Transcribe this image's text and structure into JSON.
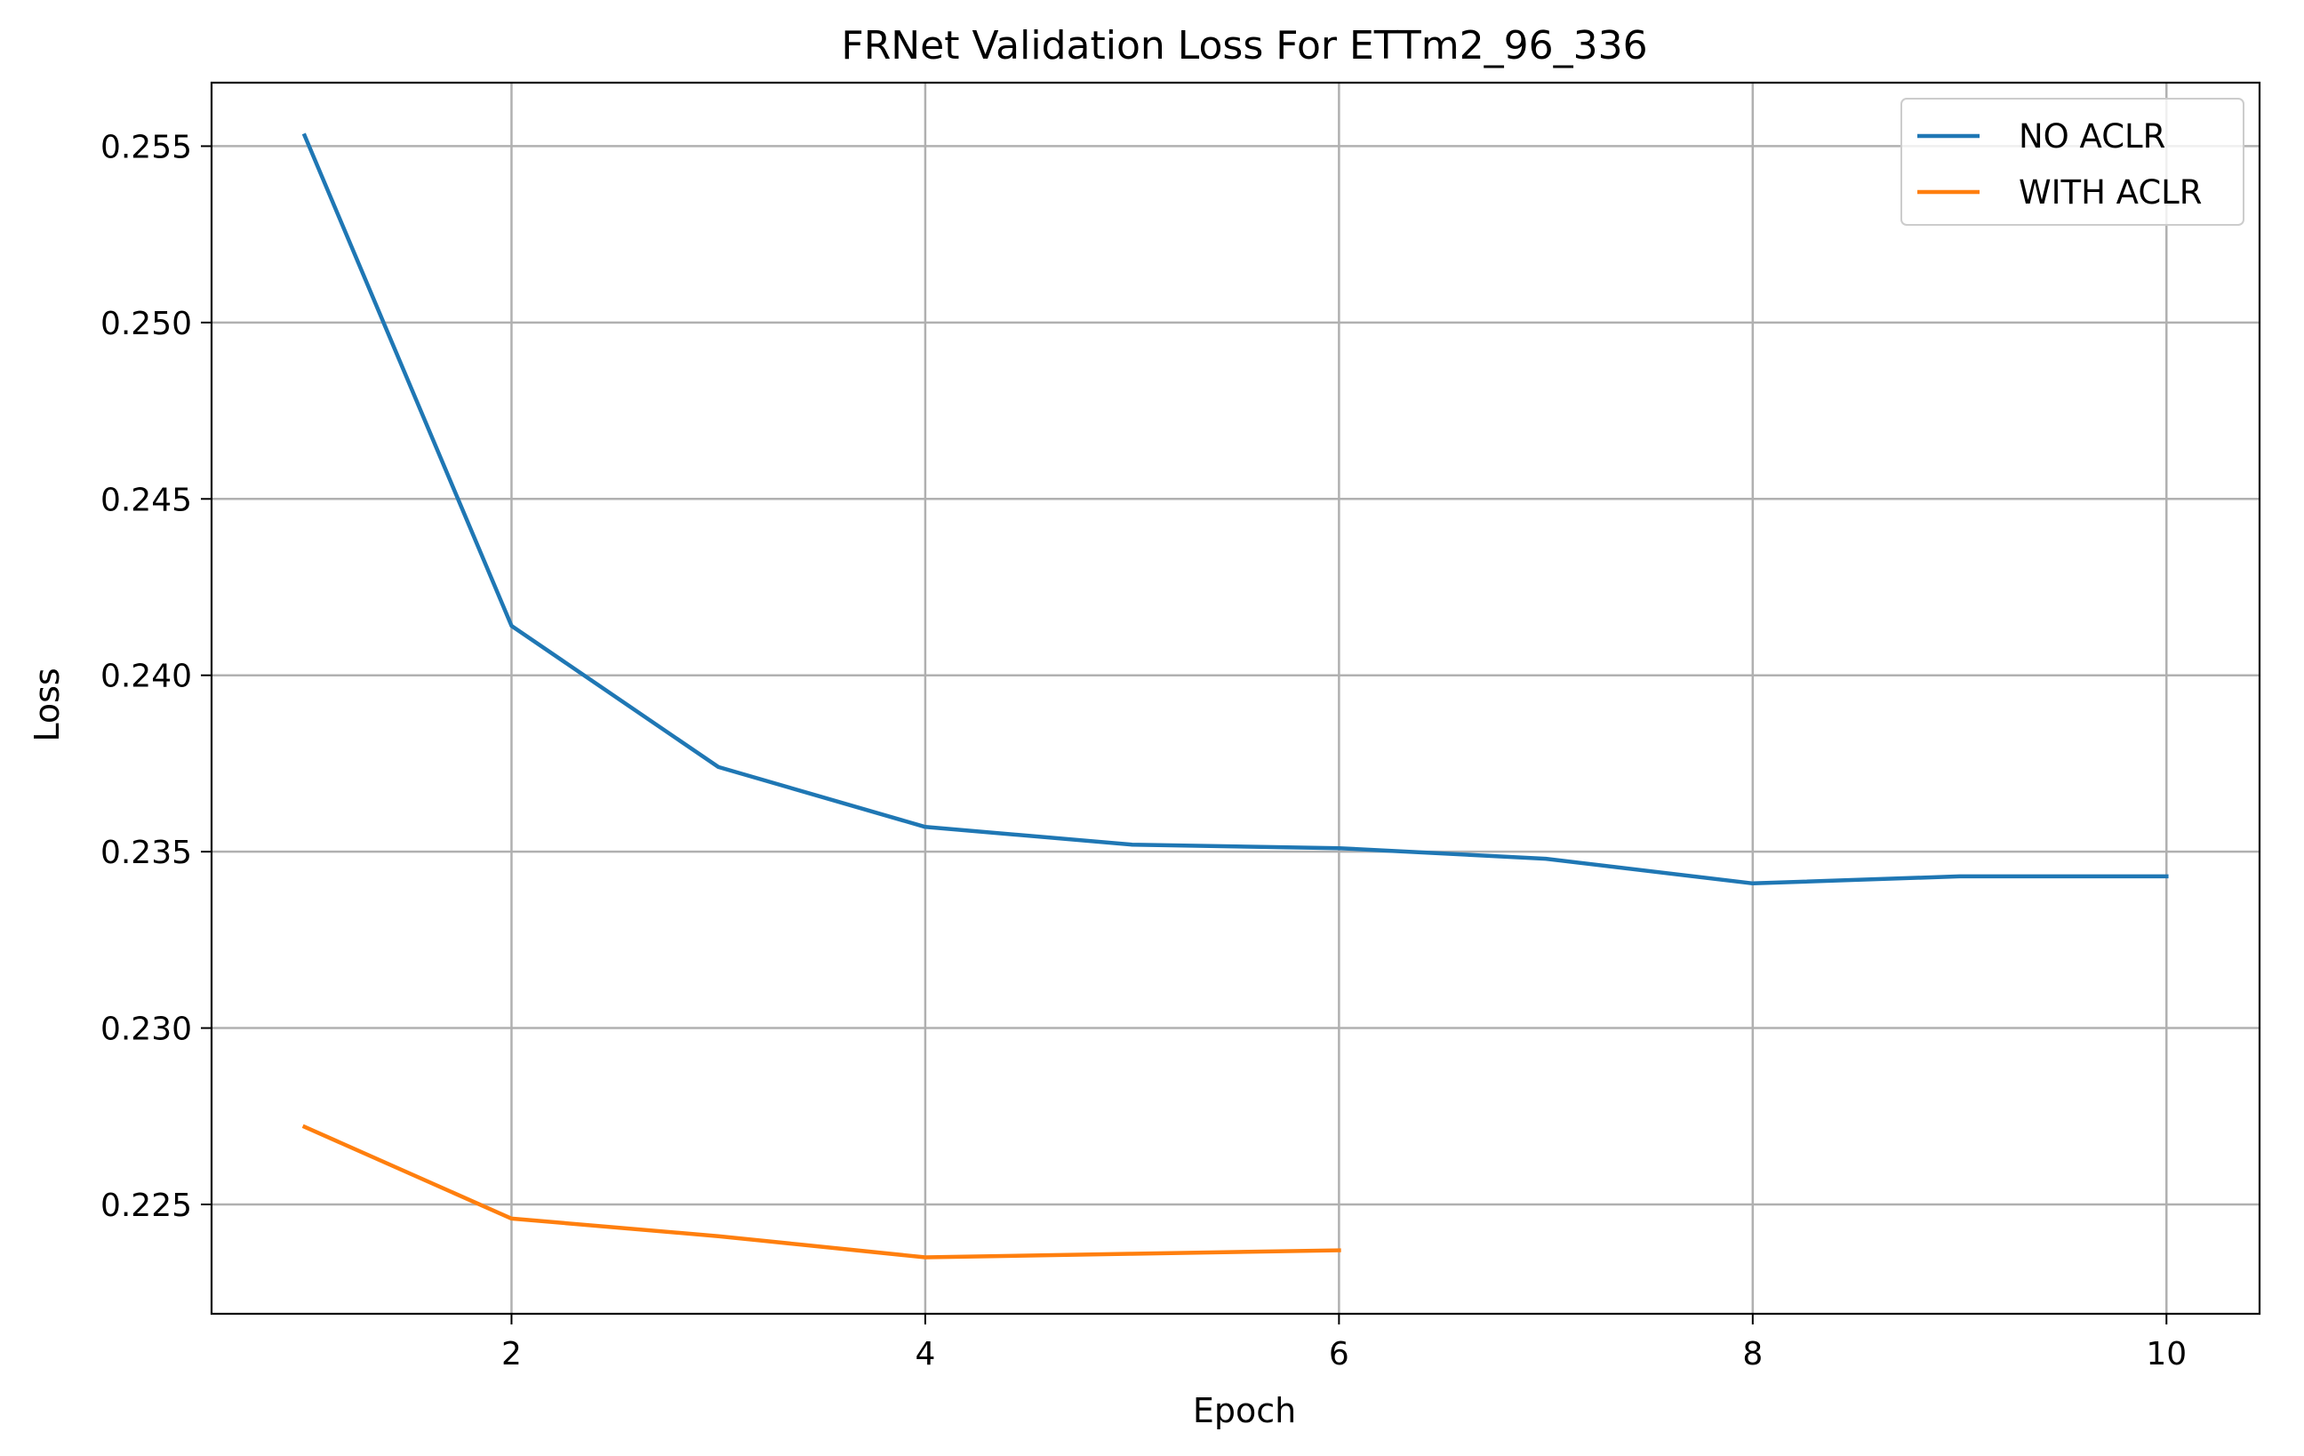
{
  "chart_data": {
    "type": "line",
    "title": "FRNet Validation Loss For ETTm2_96_336",
    "xlabel": "Epoch",
    "ylabel": "Loss",
    "xlim": [
      0.55,
      10.45
    ],
    "ylim": [
      0.2219,
      0.2568
    ],
    "xticks": [
      2,
      4,
      6,
      8,
      10
    ],
    "yticks": [
      0.225,
      0.23,
      0.235,
      0.24,
      0.245,
      0.25,
      0.255
    ],
    "xtick_labels": [
      "2",
      "4",
      "6",
      "8",
      "10"
    ],
    "ytick_labels": [
      "0.225",
      "0.230",
      "0.235",
      "0.240",
      "0.245",
      "0.250",
      "0.255"
    ],
    "grid": true,
    "legend_position": "top-right",
    "series": [
      {
        "name": "NO ACLR",
        "color": "#1f77b4",
        "x": [
          1,
          2,
          3,
          4,
          5,
          6,
          7,
          8,
          9,
          10
        ],
        "values": [
          0.2553,
          0.2414,
          0.2374,
          0.2357,
          0.2352,
          0.2351,
          0.2348,
          0.2341,
          0.2343,
          0.2343
        ]
      },
      {
        "name": "WITH ACLR",
        "color": "#ff7f0e",
        "x": [
          1,
          2,
          3,
          4,
          5,
          6
        ],
        "values": [
          0.2272,
          0.2246,
          0.2241,
          0.2235,
          0.2236,
          0.2237
        ]
      }
    ]
  }
}
